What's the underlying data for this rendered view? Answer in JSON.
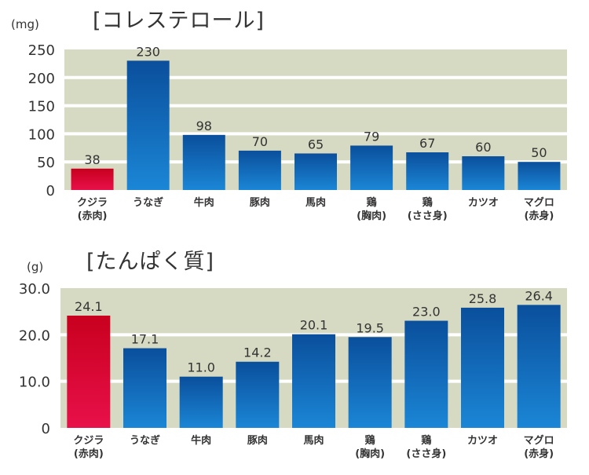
{
  "colors": {
    "plot_bg": "#d6dac2",
    "grid": "#ffffff",
    "highlight_top": "#c8001e",
    "highlight_bottom": "#e8104a",
    "bar_top": "#0a4f9c",
    "bar_bottom": "#1b86d6"
  },
  "chart_data": [
    {
      "type": "bar",
      "title": "[コレステロール]",
      "ylabel": "(mg)",
      "xlabel": "",
      "ylim": [
        0,
        250
      ],
      "yticks": [
        0,
        50,
        100,
        150,
        200,
        250
      ],
      "ytick_labels": [
        "0",
        "50",
        "100",
        "150",
        "200",
        "250"
      ],
      "grid": true,
      "categories": [
        [
          "クジラ",
          "(赤肉)"
        ],
        [
          "うなぎ"
        ],
        [
          "牛肉"
        ],
        [
          "豚肉"
        ],
        [
          "馬肉"
        ],
        [
          "鶏",
          "(胸肉)"
        ],
        [
          "鶏",
          "(ささ身)"
        ],
        [
          "カツオ"
        ],
        [
          "マグロ",
          "(赤身)"
        ]
      ],
      "values": [
        38,
        230,
        98,
        70,
        65,
        79,
        67,
        60,
        50
      ],
      "value_labels": [
        "38",
        "230",
        "98",
        "70",
        "65",
        "79",
        "67",
        "60",
        "50"
      ],
      "highlight_index": 0
    },
    {
      "type": "bar",
      "title": "[たんぱく質]",
      "ylabel": "(g)",
      "xlabel": "",
      "ylim": [
        0,
        30
      ],
      "yticks": [
        0,
        10,
        20,
        30
      ],
      "ytick_labels": [
        "0",
        "10.0",
        "20.0",
        "30.0"
      ],
      "grid": true,
      "categories": [
        [
          "クジラ",
          "(赤肉)"
        ],
        [
          "うなぎ"
        ],
        [
          "牛肉"
        ],
        [
          "豚肉"
        ],
        [
          "馬肉"
        ],
        [
          "鶏",
          "(胸肉)"
        ],
        [
          "鶏",
          "(ささ身)"
        ],
        [
          "カツオ"
        ],
        [
          "マグロ",
          "(赤身)"
        ]
      ],
      "values": [
        24.1,
        17.1,
        11.0,
        14.2,
        20.1,
        19.5,
        23.0,
        25.8,
        26.4
      ],
      "value_labels": [
        "24.1",
        "17.1",
        "11.0",
        "14.2",
        "20.1",
        "19.5",
        "23.0",
        "25.8",
        "26.4"
      ],
      "highlight_index": 0
    }
  ]
}
